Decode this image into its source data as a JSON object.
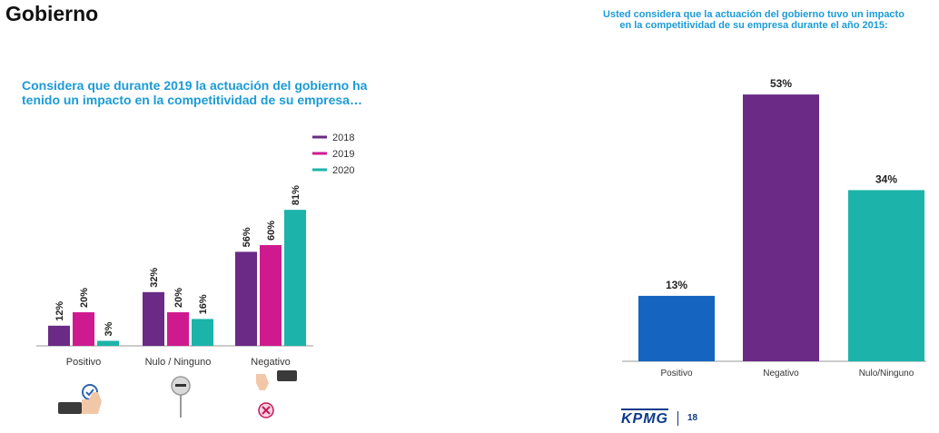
{
  "page": {
    "heading": "Gobierno",
    "page_number": "18",
    "logo_text": "KPMG"
  },
  "chart_data": [
    {
      "type": "bar",
      "title": "Considera que durante 2019 la actuación del gobierno ha tenido un impacto en la competitividad de su empresa…",
      "categories": [
        "Positivo",
        "Nulo / Ninguno",
        "Negativo"
      ],
      "series": [
        {
          "name": "2018",
          "values": [
            12,
            32,
            56
          ],
          "color": "#6a2a86"
        },
        {
          "name": "2019",
          "values": [
            20,
            20,
            60
          ],
          "color": "#cf1a8f"
        },
        {
          "name": "2020",
          "values": [
            3,
            16,
            81
          ],
          "color": "#1bb3aa"
        }
      ],
      "unit": "%",
      "ylim": [
        0,
        100
      ],
      "legend": "top-right",
      "icons": [
        "thumbs-up-check-icon",
        "neutral-minus-icon",
        "thumbs-down-cross-icon"
      ]
    },
    {
      "type": "bar",
      "title": "Usted considera que la actuación del gobierno tuvo un impacto en la competitividad de su empresa durante el año 2015:",
      "categories": [
        "Positivo",
        "Negativo",
        "Nulo/Ninguno"
      ],
      "values": [
        13,
        53,
        34
      ],
      "colors": [
        "#1565c0",
        "#6a2a86",
        "#1bb3aa"
      ],
      "unit": "%",
      "ylim": [
        0,
        55
      ]
    }
  ]
}
